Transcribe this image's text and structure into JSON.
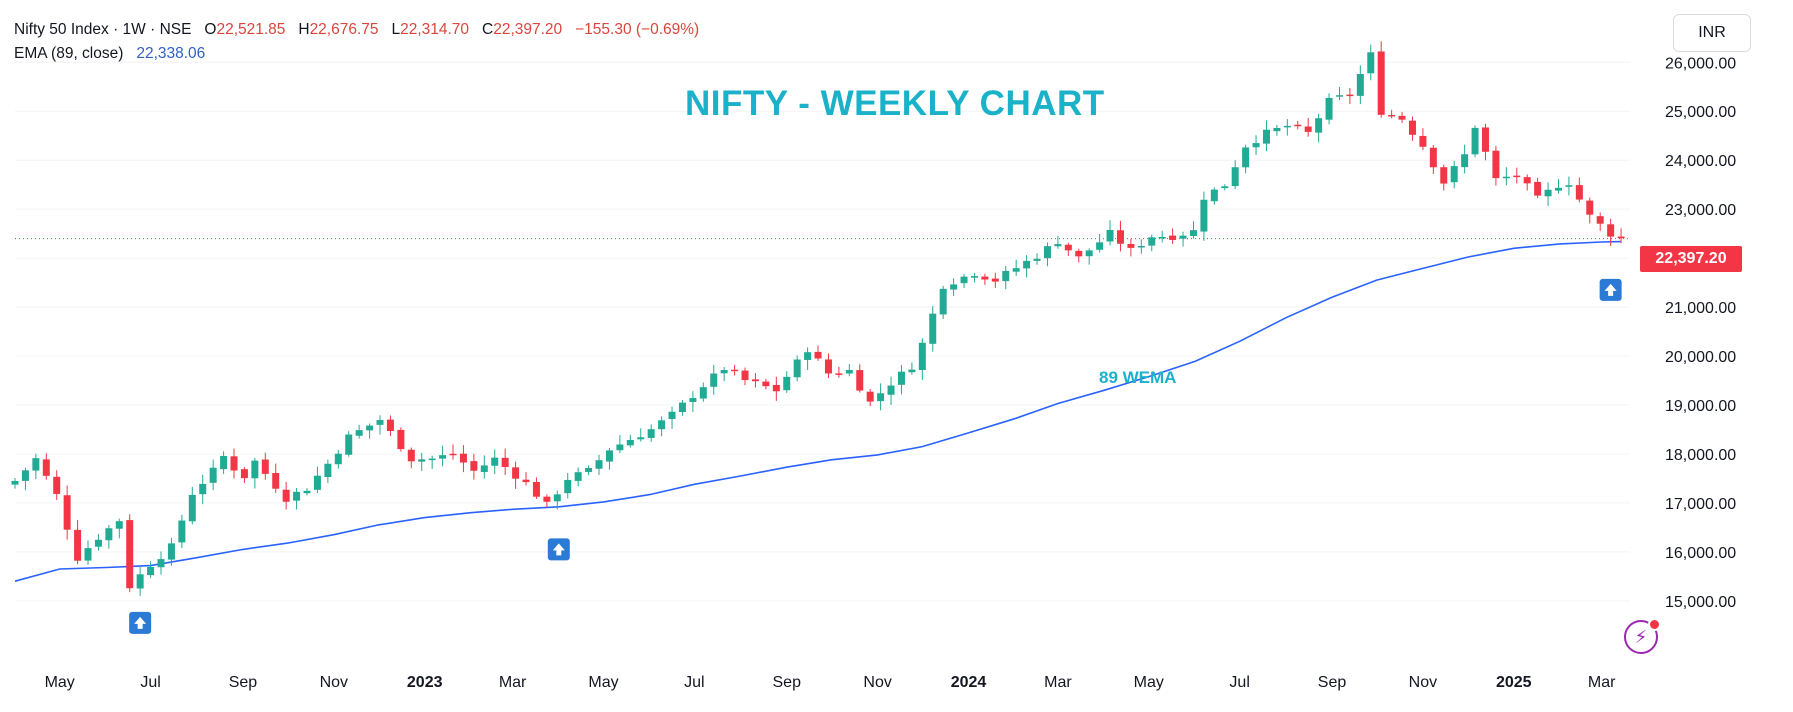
{
  "header": {
    "symbol": "Nifty 50 Index · 1W · NSE",
    "open_label": "O",
    "open": "22,521.85",
    "high_label": "H",
    "high": "22,676.75",
    "low_label": "L",
    "low": "22,314.70",
    "close_label": "C",
    "close": "22,397.20",
    "change": "−155.30 (−0.69%)",
    "ema_label": "EMA (89, close)",
    "ema_value": "22,338.06",
    "currency": "INR"
  },
  "colors": {
    "up": "#22ab94",
    "down": "#f23645",
    "ema_line": "#2962ff",
    "annotation": "#1ab1c9",
    "marker": "#2b7bd6"
  },
  "chart_data": {
    "type": "candlestick",
    "title": "NIFTY - WEEKLY CHART",
    "annotations": [
      "89 WEMA"
    ],
    "last_price_label": "22,397.20",
    "ylim": [
      14200,
      26700
    ],
    "y_ticks": [
      15000,
      16000,
      17000,
      18000,
      19000,
      20000,
      21000,
      22000,
      23000,
      24000,
      25000,
      26000
    ],
    "y_tick_labels": [
      "15,000.00",
      "16,000.00",
      "17,000.00",
      "18,000.00",
      "19,000.00",
      "20,000.00",
      "21,000.00",
      "22,000.00",
      "23,000.00",
      "24,000.00",
      "25,000.00",
      "26,000.00"
    ],
    "x_range": [
      "2022-04-01",
      "2025-03-20"
    ],
    "x_ticks": [
      {
        "date": "2022-05-01",
        "label": "May"
      },
      {
        "date": "2022-07-01",
        "label": "Jul"
      },
      {
        "date": "2022-09-01",
        "label": "Sep"
      },
      {
        "date": "2022-11-01",
        "label": "Nov"
      },
      {
        "date": "2023-01-01",
        "label": "2023"
      },
      {
        "date": "2023-03-01",
        "label": "Mar"
      },
      {
        "date": "2023-05-01",
        "label": "May"
      },
      {
        "date": "2023-07-01",
        "label": "Jul"
      },
      {
        "date": "2023-09-01",
        "label": "Sep"
      },
      {
        "date": "2023-11-01",
        "label": "Nov"
      },
      {
        "date": "2024-01-01",
        "label": "2024"
      },
      {
        "date": "2024-03-01",
        "label": "Mar"
      },
      {
        "date": "2024-05-01",
        "label": "May"
      },
      {
        "date": "2024-07-01",
        "label": "Jul"
      },
      {
        "date": "2024-09-01",
        "label": "Sep"
      },
      {
        "date": "2024-11-01",
        "label": "Nov"
      },
      {
        "date": "2025-01-01",
        "label": "2025"
      },
      {
        "date": "2025-03-01",
        "label": "Mar"
      }
    ],
    "close_anchors": [
      [
        "2022-04-01",
        17450
      ],
      [
        "2022-04-15",
        17900
      ],
      [
        "2022-05-01",
        17050
      ],
      [
        "2022-05-12",
        15850
      ],
      [
        "2022-05-27",
        16300
      ],
      [
        "2022-06-10",
        16650
      ],
      [
        "2022-06-17",
        15300
      ],
      [
        "2022-07-01",
        15750
      ],
      [
        "2022-07-15",
        16100
      ],
      [
        "2022-07-29",
        17200
      ],
      [
        "2022-08-12",
        17650
      ],
      [
        "2022-08-19",
        17950
      ],
      [
        "2022-09-01",
        17500
      ],
      [
        "2022-09-09",
        17850
      ],
      [
        "2022-09-30",
        17100
      ],
      [
        "2022-10-14",
        17300
      ],
      [
        "2022-10-28",
        17800
      ],
      [
        "2022-11-11",
        18350
      ],
      [
        "2022-12-02",
        18700
      ],
      [
        "2022-12-23",
        17900
      ],
      [
        "2023-01-06",
        17900
      ],
      [
        "2023-01-20",
        18000
      ],
      [
        "2023-02-03",
        17650
      ],
      [
        "2023-02-17",
        17900
      ],
      [
        "2023-03-10",
        17400
      ],
      [
        "2023-03-24",
        16950
      ],
      [
        "2023-04-07",
        17500
      ],
      [
        "2023-04-21",
        17650
      ],
      [
        "2023-05-05",
        18100
      ],
      [
        "2023-05-19",
        18300
      ],
      [
        "2023-06-02",
        18500
      ],
      [
        "2023-06-16",
        18800
      ],
      [
        "2023-07-07",
        19400
      ],
      [
        "2023-07-21",
        19750
      ],
      [
        "2023-08-04",
        19500
      ],
      [
        "2023-08-25",
        19300
      ],
      [
        "2023-09-15",
        20150
      ],
      [
        "2023-09-29",
        19650
      ],
      [
        "2023-10-13",
        19700
      ],
      [
        "2023-10-27",
        19050
      ],
      [
        "2023-11-10",
        19450
      ],
      [
        "2023-11-24",
        19800
      ],
      [
        "2023-12-01",
        20250
      ],
      [
        "2023-12-15",
        21450
      ],
      [
        "2024-01-05",
        21700
      ],
      [
        "2024-01-19",
        21550
      ],
      [
        "2024-02-02",
        21800
      ],
      [
        "2024-02-16",
        22050
      ],
      [
        "2024-03-01",
        22350
      ],
      [
        "2024-03-15",
        22000
      ],
      [
        "2024-04-05",
        22500
      ],
      [
        "2024-04-19",
        22150
      ],
      [
        "2024-05-03",
        22450
      ],
      [
        "2024-05-17",
        22450
      ],
      [
        "2024-05-31",
        22550
      ],
      [
        "2024-06-07",
        23250
      ],
      [
        "2024-06-21",
        23500
      ],
      [
        "2024-07-05",
        24300
      ],
      [
        "2024-07-19",
        24550
      ],
      [
        "2024-08-02",
        24700
      ],
      [
        "2024-08-16",
        24550
      ],
      [
        "2024-08-30",
        25200
      ],
      [
        "2024-09-13",
        25350
      ],
      [
        "2024-09-27",
        26150
      ],
      [
        "2024-10-04",
        25000
      ],
      [
        "2024-10-18",
        24850
      ],
      [
        "2024-11-01",
        24300
      ],
      [
        "2024-11-15",
        23550
      ],
      [
        "2024-11-29",
        24100
      ],
      [
        "2024-12-06",
        24700
      ],
      [
        "2024-12-20",
        23600
      ],
      [
        "2025-01-03",
        23700
      ],
      [
        "2025-01-17",
        23200
      ],
      [
        "2025-01-31",
        23500
      ],
      [
        "2025-02-07",
        23550
      ],
      [
        "2025-02-21",
        22850
      ],
      [
        "2025-03-07",
        22500
      ],
      [
        "2025-03-14",
        22397
      ]
    ],
    "ema_89": [
      [
        "2022-04-01",
        15400
      ],
      [
        "2022-05-01",
        15650
      ],
      [
        "2022-06-01",
        15680
      ],
      [
        "2022-07-01",
        15720
      ],
      [
        "2022-08-01",
        15880
      ],
      [
        "2022-09-01",
        16050
      ],
      [
        "2022-10-01",
        16180
      ],
      [
        "2022-11-01",
        16350
      ],
      [
        "2022-12-01",
        16550
      ],
      [
        "2023-01-01",
        16700
      ],
      [
        "2023-02-01",
        16800
      ],
      [
        "2023-03-01",
        16870
      ],
      [
        "2023-04-01",
        16920
      ],
      [
        "2023-05-01",
        17020
      ],
      [
        "2023-06-01",
        17170
      ],
      [
        "2023-07-01",
        17380
      ],
      [
        "2023-08-01",
        17550
      ],
      [
        "2023-09-01",
        17730
      ],
      [
        "2023-10-01",
        17880
      ],
      [
        "2023-11-01",
        17980
      ],
      [
        "2023-12-01",
        18150
      ],
      [
        "2024-01-01",
        18430
      ],
      [
        "2024-02-01",
        18720
      ],
      [
        "2024-03-01",
        19030
      ],
      [
        "2024-04-01",
        19300
      ],
      [
        "2024-05-01",
        19580
      ],
      [
        "2024-06-01",
        19890
      ],
      [
        "2024-07-01",
        20300
      ],
      [
        "2024-08-01",
        20780
      ],
      [
        "2024-09-01",
        21200
      ],
      [
        "2024-10-01",
        21550
      ],
      [
        "2024-11-01",
        21790
      ],
      [
        "2024-12-01",
        22020
      ],
      [
        "2025-01-01",
        22200
      ],
      [
        "2025-02-01",
        22290
      ],
      [
        "2025-03-01",
        22330
      ],
      [
        "2025-03-14",
        22338
      ]
    ],
    "buy_markers": [
      {
        "date": "2022-06-24",
        "y": 14550
      },
      {
        "date": "2023-04-01",
        "y": 16050
      },
      {
        "date": "2025-03-07",
        "y": 21350
      }
    ]
  }
}
